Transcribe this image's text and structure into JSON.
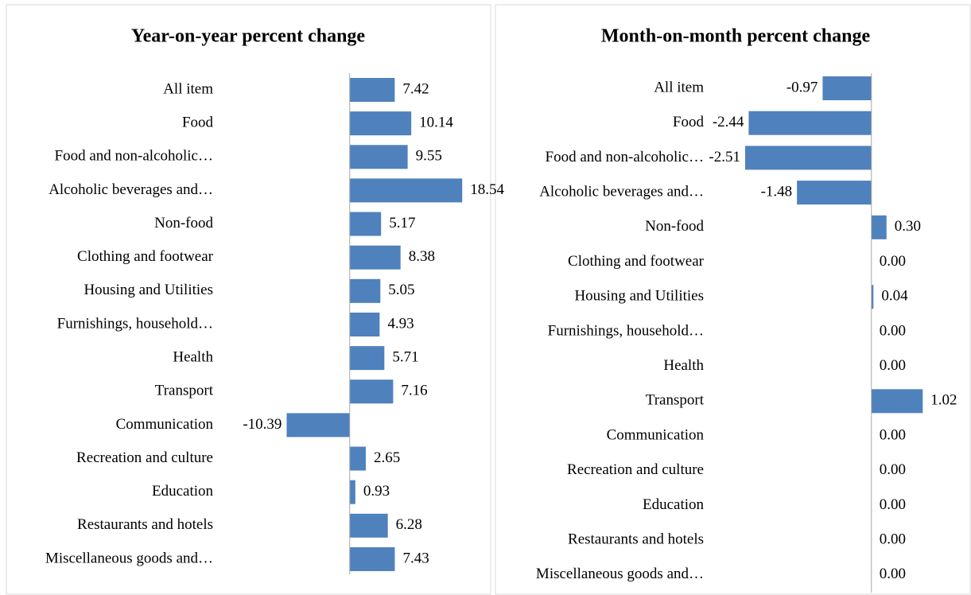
{
  "chart_data": [
    {
      "type": "bar",
      "orientation": "horizontal",
      "title": "Year-on-year percent change",
      "categories": [
        "All item",
        "Food",
        "Food and non-alcoholic…",
        "Alcoholic beverages and…",
        "Non-food",
        "Clothing and footwear",
        "Housing and Utilities",
        "Furnishings, household…",
        "Health",
        "Transport",
        "Communication",
        "Recreation and culture",
        "Education",
        "Restaurants and hotels",
        "Miscellaneous goods and…"
      ],
      "values": [
        7.42,
        10.14,
        9.55,
        18.54,
        5.17,
        8.38,
        5.05,
        4.93,
        5.71,
        7.16,
        -10.39,
        2.65,
        0.93,
        6.28,
        7.43
      ],
      "value_labels": [
        "7.42",
        "10.14",
        "9.55",
        "18.54",
        "5.17",
        "8.38",
        "5.05",
        "4.93",
        "5.71",
        "7.16",
        "-10.39",
        "2.65",
        "0.93",
        "6.28",
        "7.43"
      ],
      "color": "#4f81bd",
      "xlim": [
        -17,
        21
      ]
    },
    {
      "type": "bar",
      "orientation": "horizontal",
      "title": "Month-on-month percent change",
      "categories": [
        "All item",
        "Food",
        "Food and non-alcoholic…",
        "Alcoholic beverages and…",
        "Non-food",
        "Clothing and footwear",
        "Housing and Utilities",
        "Furnishings, household…",
        "Health",
        "Transport",
        "Communication",
        "Recreation and culture",
        "Education",
        "Restaurants and hotels",
        "Miscellaneous goods and…"
      ],
      "values": [
        -0.97,
        -2.44,
        -2.51,
        -1.48,
        0.3,
        0,
        0.04,
        0,
        0,
        1.02,
        0,
        0,
        0,
        0,
        0
      ],
      "value_labels": [
        "-0.97",
        "-2.44",
        "-2.51",
        "-1.48",
        "0.30",
        "0.00",
        "0.04",
        "0.00",
        "0.00",
        "1.02",
        "0.00",
        "0.00",
        "0.00",
        "0.00",
        "0.00"
      ],
      "color": "#4f81bd",
      "xlim": [
        -3,
        1.6
      ]
    }
  ]
}
